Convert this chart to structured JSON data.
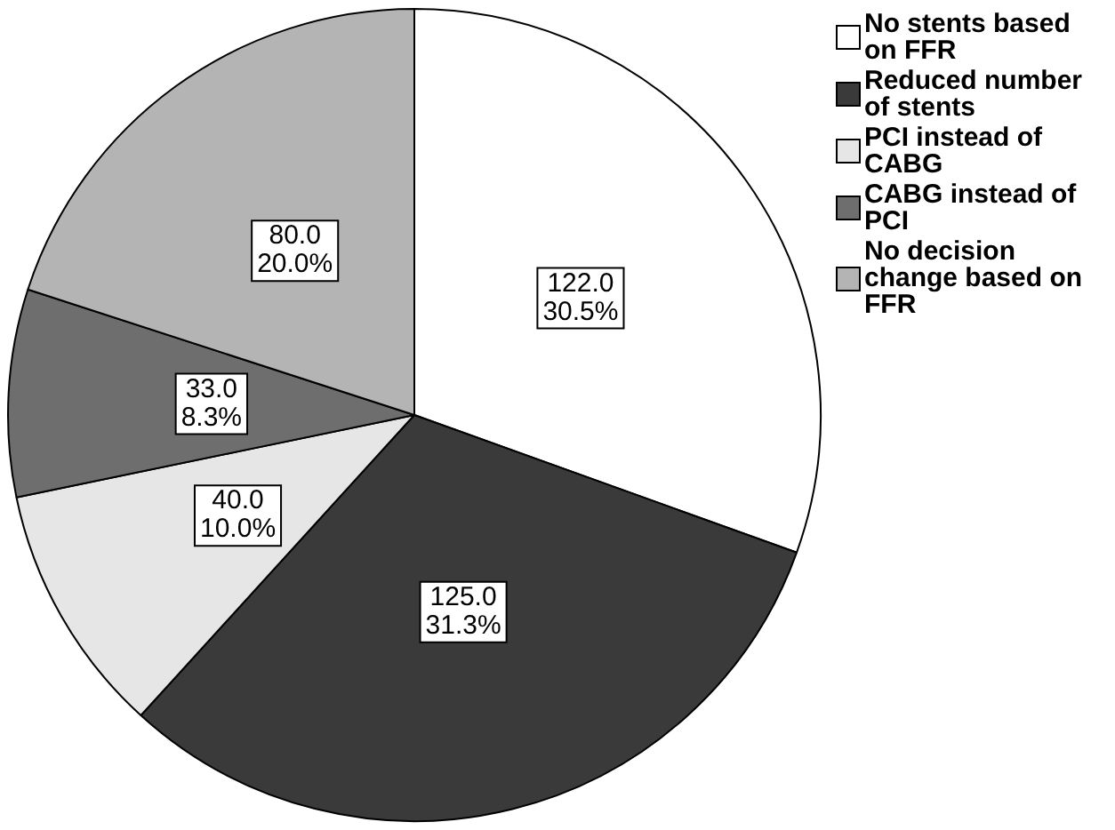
{
  "chart_data": {
    "type": "pie",
    "categories": [
      "No stents based on FFR",
      "Reduced number of stents",
      "PCI instead of CABG",
      "CABG instead of PCI",
      "No decision change based on FFR"
    ],
    "values": [
      122,
      125,
      40,
      33,
      80
    ],
    "colors": [
      "#ffffff",
      "#3a3a3a",
      "#e6e6e6",
      "#6e6e6e",
      "#b4b4b4"
    ],
    "value_labels": [
      "122.0\n30.5%",
      "125.0\n31.3%",
      "40.0\n10.0%",
      "33.0\n8.3%",
      "80.0\n20.0%"
    ],
    "legend": "top right"
  }
}
